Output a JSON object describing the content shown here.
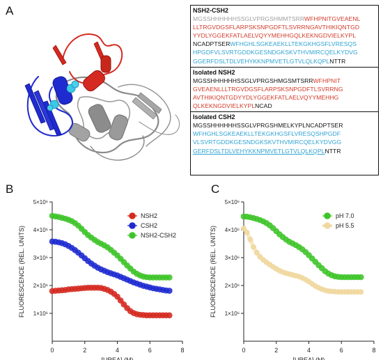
{
  "panels": {
    "a": "A",
    "b": "B",
    "c": "C"
  },
  "sequences": [
    {
      "title": "NSH2-CSH2",
      "lines": [
        [
          {
            "t": "MGSSHHHHHHSSGLVPRGSHMMTSRR",
            "c": "gray"
          },
          {
            "t": "WFHPNITGVEAENL",
            "c": "red"
          }
        ],
        [
          {
            "t": "LLTRGVDGSFLARPSKSNPGDFTLSVRRNGAVTHIKIQNTGD",
            "c": "red"
          }
        ],
        [
          {
            "t": "YYDLYGGEKFATLAELVQYYMEHHGQLKEKNGDVIELKYPL",
            "c": "red"
          }
        ],
        [
          {
            "t": "NCADPTSER",
            "c": "black"
          },
          {
            "t": "WFHGHLSGKEAEKLLTEKGKHGSFLVRESQS",
            "c": "blue"
          }
        ],
        [
          {
            "t": "HPGDFVLSVRTGDDKGESNDGKSKVTHVMIRCQELKYDVG",
            "c": "blue"
          }
        ],
        [
          {
            "t": "GGERFDSLTDLVEHYKKNPMVETLGTVLQLKQPL",
            "c": "blue"
          },
          {
            "t": "NTTR",
            "c": "black"
          }
        ]
      ]
    },
    {
      "title": "Isolated NSH2",
      "lines": [
        [
          {
            "t": "MGSSHHHHHHSSGLVPRGSHMGSMTSRR",
            "c": "black"
          },
          {
            "t": "WFHPNIT",
            "c": "red"
          }
        ],
        [
          {
            "t": "GVEAENLLLTRGVDGSFLARPSKSNPGDFTLSVRRNG",
            "c": "red"
          }
        ],
        [
          {
            "t": "AVTHIKIQNTGDYYDLYGGEKFATLAELVQYYMEHHG",
            "c": "red"
          }
        ],
        [
          {
            "t": "QLKEKNGDVIELKYPL",
            "c": "red"
          },
          {
            "t": "NCAD",
            "c": "black"
          }
        ]
      ]
    },
    {
      "title": "Isolated CSH2",
      "lines": [
        [
          {
            "t": "MGSSHHHHHHSSGLVPRGSHMELKYPLNCADPTSER",
            "c": "black"
          }
        ],
        [
          {
            "t": "WFHGHLSGKEAEKLLTEKGKHGSFLVRESQSHPGDF",
            "c": "blue"
          }
        ],
        [
          {
            "t": "VLSVRTGDDKGESNDGKSKVTHVMIRCQELKYDVGG",
            "c": "blue"
          }
        ],
        [
          {
            "t": "GERFDSLTDLVEHYKKNPMVETLGTVLQLKQPL",
            "c": "blue",
            "u": true
          },
          {
            "t": "NTTR",
            "c": "black"
          }
        ]
      ]
    }
  ],
  "colors": {
    "red": "#d23a2a",
    "blue": "#2fa3d3",
    "gray": "#a0a0a0",
    "black": "#111111"
  },
  "chart_data": [
    {
      "type": "scatter",
      "panel": "B",
      "xlabel": "[UREA] (M)",
      "ylabel": "FLUORESCENCE (REL. UNITS)",
      "xlim": [
        0,
        8
      ],
      "ylim": [
        0,
        5000000
      ],
      "xticks": [
        0,
        2,
        4,
        6,
        8
      ],
      "yticks": [
        1000000,
        2000000,
        3000000,
        4000000,
        5000000
      ],
      "ytick_labels": [
        "1×10⁶",
        "2×10⁶",
        "3×10⁶",
        "4×10⁶",
        "5×10⁶"
      ],
      "legend": "top-right",
      "series": [
        {
          "name": "NSH2",
          "color": "#d42a20",
          "glow": "#f5a6c8",
          "x": [
            0,
            0.2,
            0.4,
            0.6,
            0.8,
            1,
            1.2,
            1.4,
            1.6,
            1.8,
            2,
            2.2,
            2.4,
            2.6,
            2.8,
            3,
            3.2,
            3.4,
            3.6,
            3.8,
            4,
            4.2,
            4.4,
            4.6,
            4.8,
            5,
            5.2,
            5.4,
            5.6,
            5.8,
            6,
            6.2,
            6.4,
            6.6,
            6.8,
            7,
            7.2
          ],
          "y": [
            1800000,
            1810000,
            1820000,
            1830000,
            1840000,
            1860000,
            1870000,
            1880000,
            1890000,
            1900000,
            1910000,
            1920000,
            1920000,
            1920000,
            1920000,
            1910000,
            1880000,
            1840000,
            1780000,
            1700000,
            1600000,
            1460000,
            1320000,
            1190000,
            1080000,
            1010000,
            970000,
            950000,
            940000,
            930000,
            930000,
            930000,
            930000,
            930000,
            930000,
            930000,
            930000
          ]
        },
        {
          "name": "CSH2",
          "color": "#1f2bd0",
          "glow": "#b8a8f0",
          "x": [
            0,
            0.2,
            0.4,
            0.6,
            0.8,
            1,
            1.2,
            1.4,
            1.6,
            1.8,
            2,
            2.2,
            2.4,
            2.6,
            2.8,
            3,
            3.2,
            3.4,
            3.6,
            3.8,
            4,
            4.2,
            4.4,
            4.6,
            4.8,
            5,
            5.2,
            5.4,
            5.6,
            5.8,
            6,
            6.2,
            6.4,
            6.6,
            6.8,
            7,
            7.2
          ],
          "y": [
            3580000,
            3570000,
            3550000,
            3520000,
            3480000,
            3420000,
            3350000,
            3270000,
            3180000,
            3080000,
            2980000,
            2880000,
            2790000,
            2710000,
            2640000,
            2580000,
            2530000,
            2480000,
            2440000,
            2400000,
            2360000,
            2310000,
            2260000,
            2210000,
            2160000,
            2110000,
            2070000,
            2030000,
            1990000,
            1960000,
            1930000,
            1900000,
            1880000,
            1860000,
            1840000,
            1820000,
            1810000
          ]
        },
        {
          "name": "NSH2-CSH2",
          "color": "#3ec42a",
          "glow": "#a8e888",
          "x": [
            0,
            0.2,
            0.4,
            0.6,
            0.8,
            1,
            1.2,
            1.4,
            1.6,
            1.8,
            2,
            2.2,
            2.4,
            2.6,
            2.8,
            3,
            3.2,
            3.4,
            3.6,
            3.8,
            4,
            4.2,
            4.4,
            4.6,
            4.8,
            5,
            5.2,
            5.4,
            5.6,
            5.8,
            6,
            6.2,
            6.4,
            6.6,
            6.8,
            7,
            7.2
          ],
          "y": [
            4500000,
            4480000,
            4460000,
            4430000,
            4400000,
            4360000,
            4310000,
            4240000,
            4150000,
            4040000,
            3920000,
            3810000,
            3720000,
            3640000,
            3560000,
            3500000,
            3440000,
            3370000,
            3280000,
            3180000,
            3080000,
            2960000,
            2840000,
            2720000,
            2610000,
            2500000,
            2420000,
            2360000,
            2320000,
            2300000,
            2290000,
            2290000,
            2290000,
            2290000,
            2290000,
            2290000,
            2290000
          ]
        }
      ]
    },
    {
      "type": "scatter",
      "panel": "C",
      "xlabel": "[UREA] (M)",
      "ylabel": "FLUORESCENCE (REL. UNITS)",
      "xlim": [
        0,
        8
      ],
      "ylim": [
        0,
        5000000
      ],
      "xticks": [
        0,
        2,
        4,
        6,
        8
      ],
      "yticks": [
        1000000,
        2000000,
        3000000,
        4000000,
        5000000
      ],
      "ytick_labels": [
        "1×10⁶",
        "2×10⁶",
        "3×10⁶",
        "4×10⁶",
        "5×10⁶"
      ],
      "legend": "top-right",
      "series": [
        {
          "name": "pH 7.0",
          "color": "#3ec42a",
          "glow": "#a8e888",
          "x": [
            0,
            0.2,
            0.4,
            0.6,
            0.8,
            1,
            1.2,
            1.4,
            1.6,
            1.8,
            2,
            2.2,
            2.4,
            2.6,
            2.8,
            3,
            3.2,
            3.4,
            3.6,
            3.8,
            4,
            4.2,
            4.4,
            4.6,
            4.8,
            5,
            5.2,
            5.4,
            5.6,
            5.8,
            6,
            6.2,
            6.4,
            6.6,
            6.8,
            7,
            7.2
          ],
          "y": [
            4480000,
            4470000,
            4450000,
            4420000,
            4390000,
            4350000,
            4300000,
            4240000,
            4160000,
            4060000,
            3950000,
            3840000,
            3740000,
            3650000,
            3570000,
            3510000,
            3450000,
            3380000,
            3300000,
            3200000,
            3090000,
            2970000,
            2850000,
            2730000,
            2620000,
            2510000,
            2430000,
            2370000,
            2330000,
            2310000,
            2300000,
            2300000,
            2300000,
            2300000,
            2300000,
            2300000,
            2300000
          ]
        },
        {
          "name": "pH 5.5",
          "color": "#f0d8a0",
          "glow": "#f0d8a0",
          "x": [
            0,
            0.2,
            0.4,
            0.6,
            0.8,
            1,
            1.2,
            1.4,
            1.6,
            1.8,
            2,
            2.2,
            2.4,
            2.6,
            2.8,
            3,
            3.2,
            3.4,
            3.6,
            3.8,
            4,
            4.2,
            4.4,
            4.6,
            4.8,
            5,
            5.2,
            5.4,
            5.6,
            5.8,
            6,
            6.2,
            6.4,
            6.6,
            6.8,
            7,
            7.2
          ],
          "y": [
            4050000,
            3900000,
            3650000,
            3380000,
            3180000,
            3030000,
            2920000,
            2830000,
            2750000,
            2670000,
            2600000,
            2530000,
            2480000,
            2440000,
            2410000,
            2380000,
            2350000,
            2320000,
            2270000,
            2210000,
            2140000,
            2060000,
            1980000,
            1920000,
            1870000,
            1830000,
            1800000,
            1790000,
            1780000,
            1770000,
            1770000,
            1770000,
            1770000,
            1770000,
            1770000,
            1770000,
            1770000
          ]
        }
      ]
    }
  ]
}
